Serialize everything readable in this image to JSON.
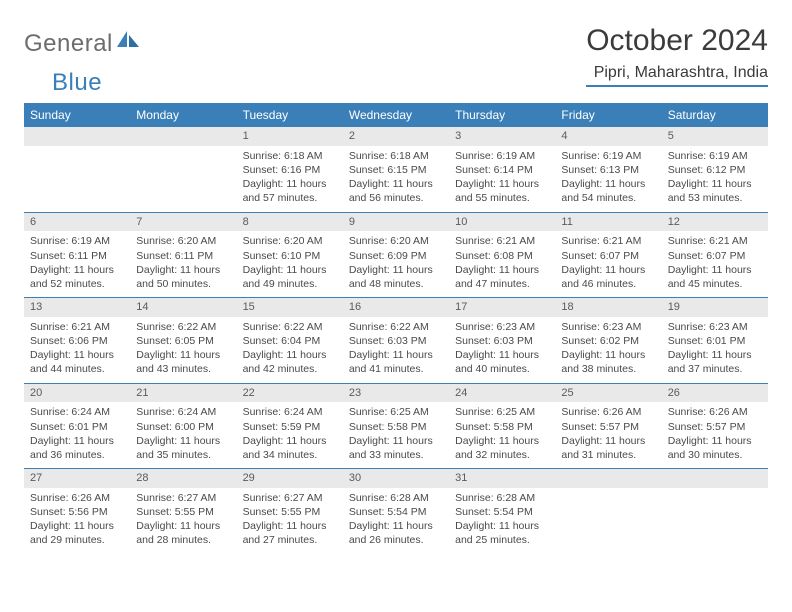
{
  "brand": {
    "part1": "General",
    "part2": "Blue"
  },
  "title": "October 2024",
  "location": "Pipri, Maharashtra, India",
  "colors": {
    "accent": "#3a7fb8",
    "dayheader_bg": "#3a7fb8",
    "daynum_bg": "#e9e9e9",
    "text": "#3b3b3b",
    "background": "#ffffff"
  },
  "dow": [
    "Sunday",
    "Monday",
    "Tuesday",
    "Wednesday",
    "Thursday",
    "Friday",
    "Saturday"
  ],
  "weeks": [
    [
      {
        "day": null
      },
      {
        "day": null
      },
      {
        "day": "1",
        "sunrise": "6:18 AM",
        "sunset": "6:16 PM",
        "daylight": "11 hours and 57 minutes."
      },
      {
        "day": "2",
        "sunrise": "6:18 AM",
        "sunset": "6:15 PM",
        "daylight": "11 hours and 56 minutes."
      },
      {
        "day": "3",
        "sunrise": "6:19 AM",
        "sunset": "6:14 PM",
        "daylight": "11 hours and 55 minutes."
      },
      {
        "day": "4",
        "sunrise": "6:19 AM",
        "sunset": "6:13 PM",
        "daylight": "11 hours and 54 minutes."
      },
      {
        "day": "5",
        "sunrise": "6:19 AM",
        "sunset": "6:12 PM",
        "daylight": "11 hours and 53 minutes."
      }
    ],
    [
      {
        "day": "6",
        "sunrise": "6:19 AM",
        "sunset": "6:11 PM",
        "daylight": "11 hours and 52 minutes."
      },
      {
        "day": "7",
        "sunrise": "6:20 AM",
        "sunset": "6:11 PM",
        "daylight": "11 hours and 50 minutes."
      },
      {
        "day": "8",
        "sunrise": "6:20 AM",
        "sunset": "6:10 PM",
        "daylight": "11 hours and 49 minutes."
      },
      {
        "day": "9",
        "sunrise": "6:20 AM",
        "sunset": "6:09 PM",
        "daylight": "11 hours and 48 minutes."
      },
      {
        "day": "10",
        "sunrise": "6:21 AM",
        "sunset": "6:08 PM",
        "daylight": "11 hours and 47 minutes."
      },
      {
        "day": "11",
        "sunrise": "6:21 AM",
        "sunset": "6:07 PM",
        "daylight": "11 hours and 46 minutes."
      },
      {
        "day": "12",
        "sunrise": "6:21 AM",
        "sunset": "6:07 PM",
        "daylight": "11 hours and 45 minutes."
      }
    ],
    [
      {
        "day": "13",
        "sunrise": "6:21 AM",
        "sunset": "6:06 PM",
        "daylight": "11 hours and 44 minutes."
      },
      {
        "day": "14",
        "sunrise": "6:22 AM",
        "sunset": "6:05 PM",
        "daylight": "11 hours and 43 minutes."
      },
      {
        "day": "15",
        "sunrise": "6:22 AM",
        "sunset": "6:04 PM",
        "daylight": "11 hours and 42 minutes."
      },
      {
        "day": "16",
        "sunrise": "6:22 AM",
        "sunset": "6:03 PM",
        "daylight": "11 hours and 41 minutes."
      },
      {
        "day": "17",
        "sunrise": "6:23 AM",
        "sunset": "6:03 PM",
        "daylight": "11 hours and 40 minutes."
      },
      {
        "day": "18",
        "sunrise": "6:23 AM",
        "sunset": "6:02 PM",
        "daylight": "11 hours and 38 minutes."
      },
      {
        "day": "19",
        "sunrise": "6:23 AM",
        "sunset": "6:01 PM",
        "daylight": "11 hours and 37 minutes."
      }
    ],
    [
      {
        "day": "20",
        "sunrise": "6:24 AM",
        "sunset": "6:01 PM",
        "daylight": "11 hours and 36 minutes."
      },
      {
        "day": "21",
        "sunrise": "6:24 AM",
        "sunset": "6:00 PM",
        "daylight": "11 hours and 35 minutes."
      },
      {
        "day": "22",
        "sunrise": "6:24 AM",
        "sunset": "5:59 PM",
        "daylight": "11 hours and 34 minutes."
      },
      {
        "day": "23",
        "sunrise": "6:25 AM",
        "sunset": "5:58 PM",
        "daylight": "11 hours and 33 minutes."
      },
      {
        "day": "24",
        "sunrise": "6:25 AM",
        "sunset": "5:58 PM",
        "daylight": "11 hours and 32 minutes."
      },
      {
        "day": "25",
        "sunrise": "6:26 AM",
        "sunset": "5:57 PM",
        "daylight": "11 hours and 31 minutes."
      },
      {
        "day": "26",
        "sunrise": "6:26 AM",
        "sunset": "5:57 PM",
        "daylight": "11 hours and 30 minutes."
      }
    ],
    [
      {
        "day": "27",
        "sunrise": "6:26 AM",
        "sunset": "5:56 PM",
        "daylight": "11 hours and 29 minutes."
      },
      {
        "day": "28",
        "sunrise": "6:27 AM",
        "sunset": "5:55 PM",
        "daylight": "11 hours and 28 minutes."
      },
      {
        "day": "29",
        "sunrise": "6:27 AM",
        "sunset": "5:55 PM",
        "daylight": "11 hours and 27 minutes."
      },
      {
        "day": "30",
        "sunrise": "6:28 AM",
        "sunset": "5:54 PM",
        "daylight": "11 hours and 26 minutes."
      },
      {
        "day": "31",
        "sunrise": "6:28 AM",
        "sunset": "5:54 PM",
        "daylight": "11 hours and 25 minutes."
      },
      {
        "day": null
      },
      {
        "day": null
      }
    ]
  ],
  "labels": {
    "sunrise_prefix": "Sunrise: ",
    "sunset_prefix": "Sunset: ",
    "daylight_prefix": "Daylight: "
  }
}
